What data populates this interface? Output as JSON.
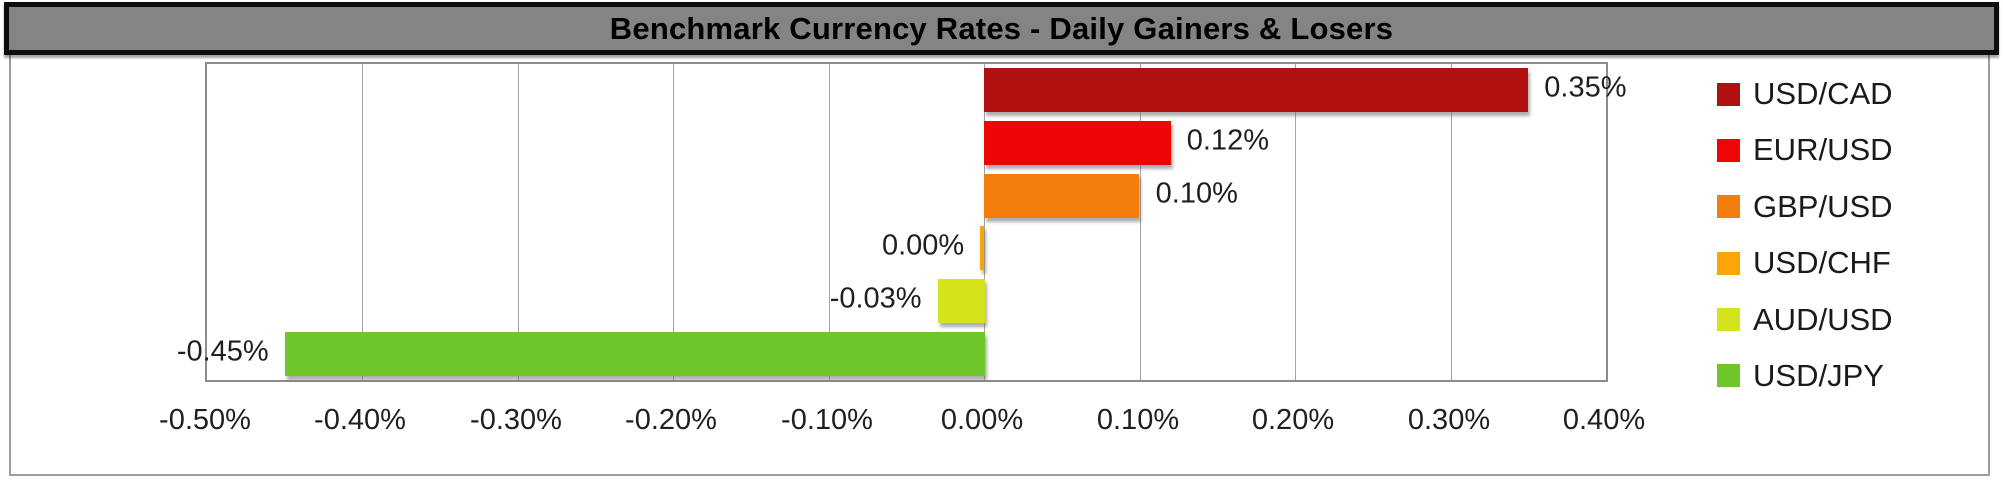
{
  "title": "Benchmark Currency Rates - Daily Gainers & Losers",
  "chart_data": {
    "type": "bar",
    "orientation": "horizontal",
    "title": "Benchmark Currency Rates - Daily Gainers & Losers",
    "categories": [
      "USD/CAD",
      "EUR/USD",
      "GBP/USD",
      "USD/CHF",
      "AUD/USD",
      "USD/JPY"
    ],
    "values": [
      0.35,
      0.12,
      0.1,
      0.0,
      -0.03,
      -0.45
    ],
    "value_labels": [
      "0.35%",
      "0.12%",
      "0.10%",
      "0.00%",
      "-0.03%",
      "-0.45%"
    ],
    "bar_colors": [
      "#B11010",
      "#EE0606",
      "#F57D0B",
      "#FBA509",
      "#D4E41C",
      "#6EC62B"
    ],
    "xlim": [
      -0.5,
      0.4
    ],
    "xticks": [
      -0.5,
      -0.4,
      -0.3,
      -0.2,
      -0.1,
      0.0,
      0.1,
      0.2,
      0.3,
      0.4
    ],
    "xtick_labels": [
      "-0.50%",
      "-0.40%",
      "-0.30%",
      "-0.20%",
      "-0.10%",
      "0.00%",
      "0.10%",
      "0.20%",
      "0.30%",
      "0.40%"
    ],
    "grid": "vertical",
    "legend_position": "right"
  },
  "colors": {
    "title_bg": "#848484",
    "title_border": "#0d0d0d",
    "title_text": "#000000",
    "plot_border": "#8c8c8c",
    "gridline": "#a3a3a3",
    "outer_border": "#9c9c9c",
    "label_text": "#1f1f1f"
  }
}
